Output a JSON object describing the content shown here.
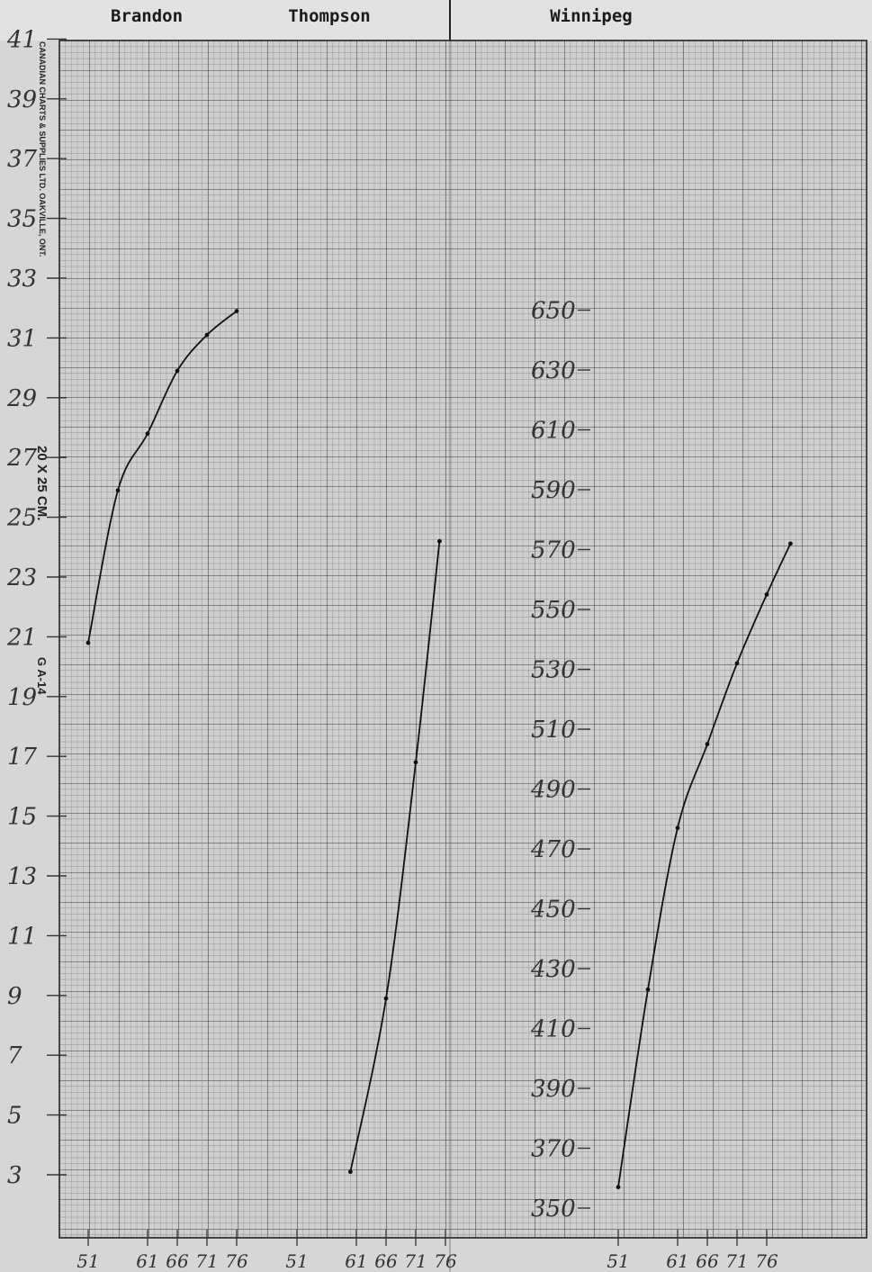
{
  "header": {
    "titles": [
      "Brandon",
      "Thompson",
      "Winnipeg"
    ]
  },
  "margin_print": {
    "supplier": "CANADIAN CHARTS & SUPPLIES LTD. OAKVILLE, ONT.",
    "size": "20 X 25 CM.",
    "code": "G A-14"
  },
  "chart_data": [
    {
      "type": "line",
      "title": "Brandon",
      "x_ticks": [
        "51",
        "61",
        "66",
        "71",
        "76"
      ],
      "y_ticks": [
        "41",
        "39",
        "37",
        "35",
        "33",
        "31",
        "29",
        "27",
        "25",
        "23",
        "21",
        "19",
        "17",
        "15",
        "13",
        "11",
        "9",
        "7",
        "5",
        "3"
      ],
      "ylim": [
        3,
        41
      ],
      "grid": true,
      "series": [
        {
          "x": [
            1951,
            1956,
            1961,
            1966,
            1971,
            1976
          ],
          "y": [
            20.8,
            25.9,
            27.8,
            29.9,
            31.1,
            31.9
          ]
        }
      ]
    },
    {
      "type": "line",
      "title": "Thompson",
      "x_ticks": [
        "51",
        "61",
        "66",
        "71",
        "76"
      ],
      "y_ticks": [
        "41",
        "39",
        "37",
        "35",
        "33",
        "31",
        "29",
        "27",
        "25",
        "23",
        "21",
        "19",
        "17",
        "15",
        "13",
        "11",
        "9",
        "7",
        "5",
        "3"
      ],
      "ylim": [
        3,
        41
      ],
      "grid": true,
      "series": [
        {
          "x": [
            1960,
            1966,
            1971,
            1975
          ],
          "y": [
            3.1,
            8.9,
            16.8,
            24.2
          ]
        }
      ]
    },
    {
      "type": "line",
      "title": "Winnipeg",
      "x_ticks": [
        "51",
        "61",
        "66",
        "71",
        "76"
      ],
      "y_ticks": [
        "650",
        "630",
        "610",
        "590",
        "570",
        "550",
        "530",
        "510",
        "490",
        "470",
        "450",
        "430",
        "410",
        "390",
        "370",
        "350"
      ],
      "ylim": [
        350,
        650
      ],
      "grid": true,
      "series": [
        {
          "x": [
            1951,
            1956,
            1961,
            1966,
            1971,
            1976,
            1980
          ],
          "y": [
            357,
            423,
            477,
            505,
            532,
            555,
            572
          ]
        }
      ]
    }
  ]
}
